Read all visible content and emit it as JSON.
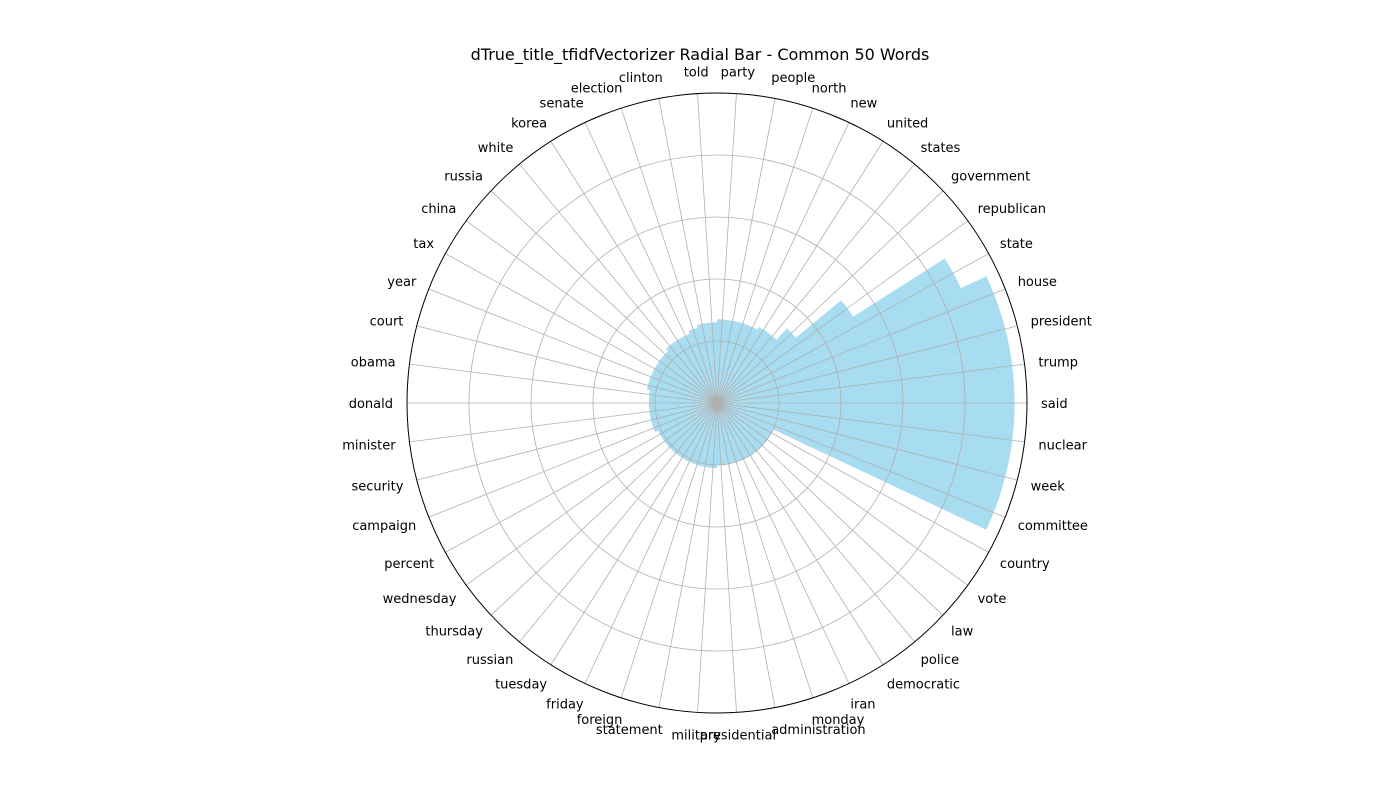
{
  "chart_data": {
    "type": "radial_bar",
    "title": "dTrue_title_tfidfVectorizer Radial Bar - Common 50 Words",
    "bar_color": "#87CEEB",
    "grid_color": "#b0b0b0",
    "rmax": 1.0,
    "radial_grid": [
      0.2,
      0.4,
      0.6,
      0.8
    ],
    "grid": true,
    "categories": [
      "said",
      "trump",
      "president",
      "house",
      "state",
      "republican",
      "government",
      "states",
      "united",
      "new",
      "north",
      "people",
      "party",
      "told",
      "clinton",
      "election",
      "senate",
      "korea",
      "white",
      "russia",
      "china",
      "tax",
      "year",
      "court",
      "obama",
      "donald",
      "minister",
      "security",
      "campaign",
      "percent",
      "wednesday",
      "thursday",
      "russian",
      "tuesday",
      "friday",
      "foreign",
      "statement",
      "military",
      "presidential",
      "administration",
      "monday",
      "iran",
      "democratic",
      "police",
      "law",
      "vote",
      "country",
      "committee",
      "week",
      "nuclear"
    ],
    "values": [
      0.96,
      0.96,
      0.96,
      0.96,
      0.87,
      0.52,
      0.33,
      0.28,
      0.28,
      0.27,
      0.27,
      0.27,
      0.27,
      0.26,
      0.26,
      0.25,
      0.24,
      0.24,
      0.24,
      0.23,
      0.23,
      0.23,
      0.23,
      0.23,
      0.22,
      0.22,
      0.22,
      0.22,
      0.22,
      0.21,
      0.21,
      0.21,
      0.21,
      0.21,
      0.21,
      0.21,
      0.21,
      0.21,
      0.2,
      0.2,
      0.2,
      0.2,
      0.2,
      0.2,
      0.2,
      0.2,
      0.2,
      0.96,
      0.96,
      0.96
    ]
  }
}
